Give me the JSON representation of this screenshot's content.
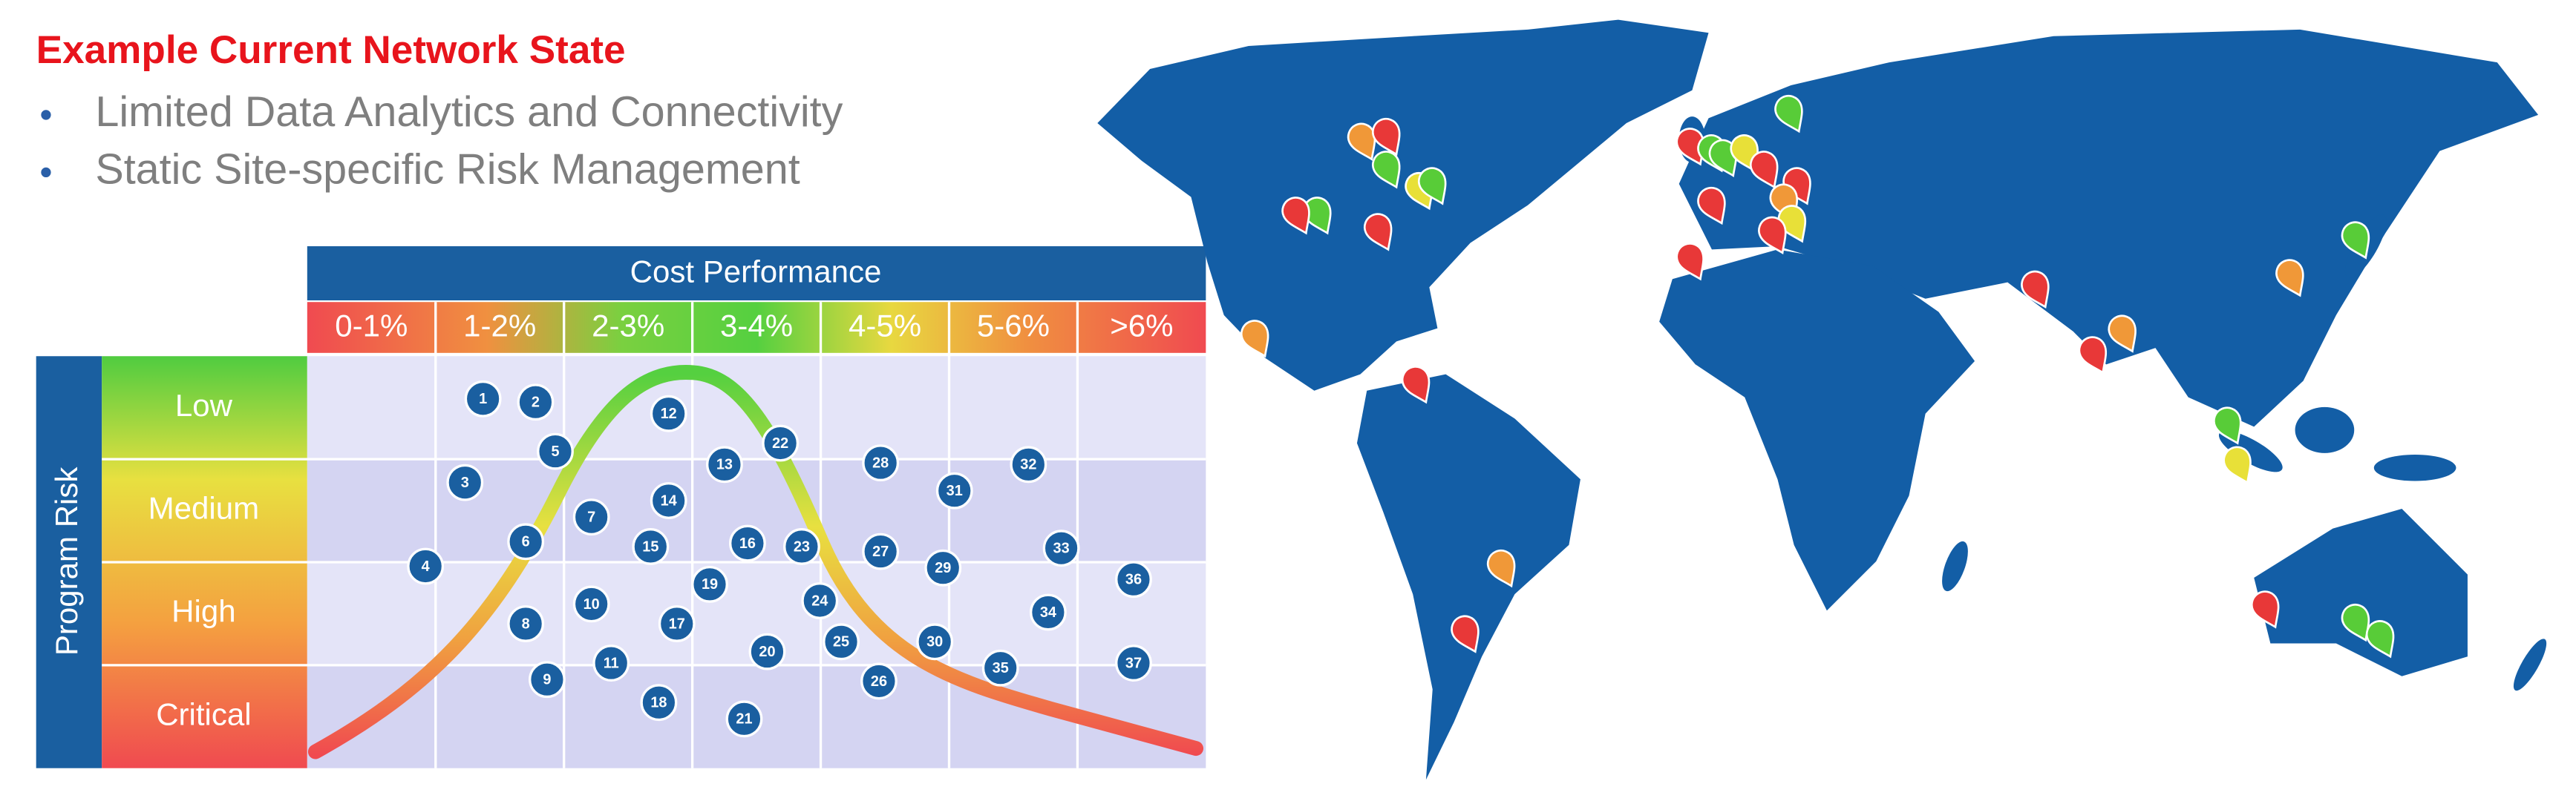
{
  "header": {
    "title": "Example Current Network State",
    "bullets": [
      "Limited Data Analytics and Connectivity",
      "Static Site-specific Risk Management"
    ]
  },
  "matrix": {
    "title": "Cost Performance",
    "columns": [
      "0-1%",
      "1-2%",
      "2-3%",
      "3-4%",
      "4-5%",
      "5-6%",
      ">6%"
    ],
    "row_axis": "Program Risk",
    "rows": [
      "Low",
      "Medium",
      "High",
      "Critical"
    ],
    "items": [
      "1",
      "2",
      "3",
      "4",
      "5",
      "6",
      "7",
      "8",
      "9",
      "10",
      "11",
      "12",
      "13",
      "14",
      "15",
      "16",
      "17",
      "18",
      "19",
      "20",
      "21",
      "22",
      "23",
      "24",
      "25",
      "26",
      "27",
      "28",
      "29",
      "30",
      "31",
      "32",
      "33",
      "34",
      "35",
      "36",
      "37"
    ]
  }
}
